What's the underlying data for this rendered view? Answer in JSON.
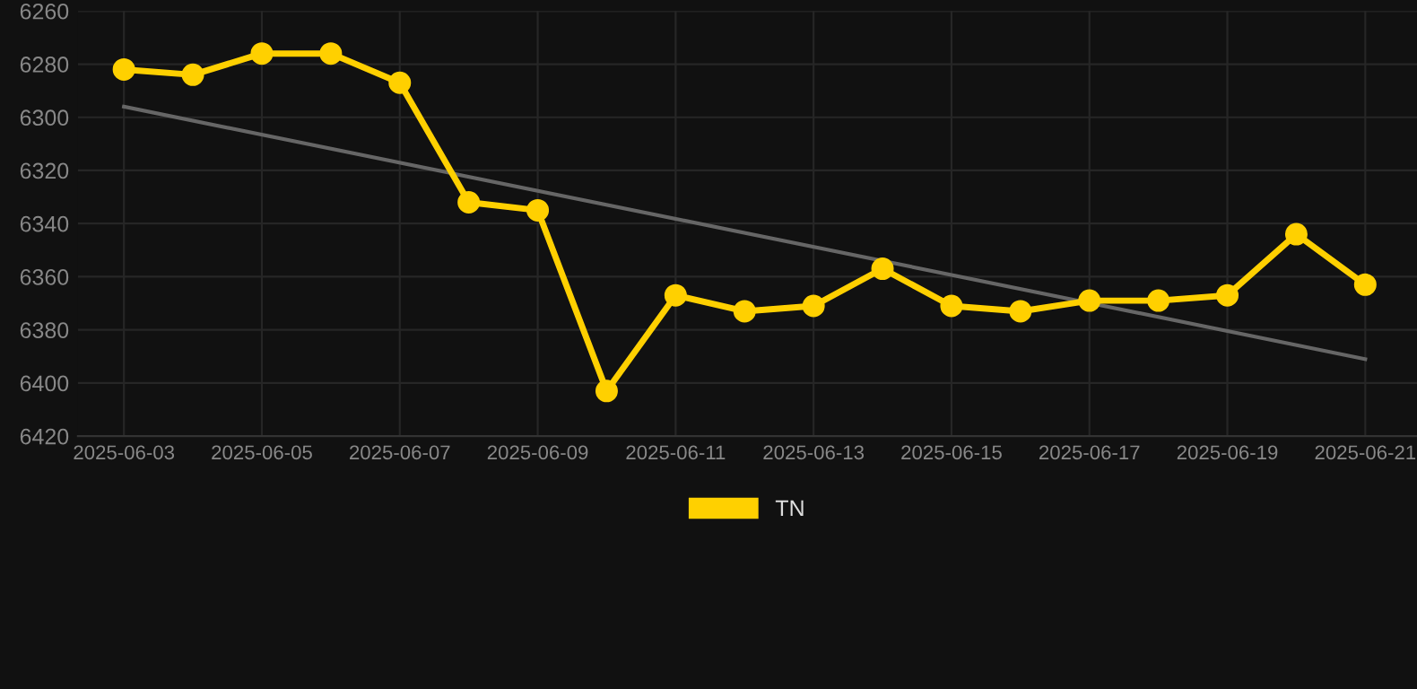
{
  "chart_data": {
    "type": "line",
    "x": [
      "2025-06-03",
      "2025-06-04",
      "2025-06-05",
      "2025-06-06",
      "2025-06-07",
      "2025-06-08",
      "2025-06-09",
      "2025-06-10",
      "2025-06-11",
      "2025-06-12",
      "2025-06-13",
      "2025-06-14",
      "2025-06-15",
      "2025-06-16",
      "2025-06-17",
      "2025-06-18",
      "2025-06-19",
      "2025-06-20",
      "2025-06-21"
    ],
    "series": [
      {
        "name": "TN",
        "color": "#ffd000",
        "marker": "circle",
        "values": [
          6282,
          6284,
          6276,
          6276,
          6287,
          6332,
          6335,
          6403,
          6367,
          6373,
          6371,
          6357,
          6371,
          6373,
          6369,
          6369,
          6367,
          6344,
          6363
        ]
      },
      {
        "type": "line",
        "color": "#666666",
        "marker": "none",
        "x": [
          "2025-06-03",
          "2025-06-21"
        ],
        "values": [
          6296,
          6391
        ]
      }
    ],
    "xlim": [
      "2025-06-02T08:00",
      "2025-06-21T18:00"
    ],
    "xticks": [
      {
        "value": "2025-06-03",
        "label": "2025-06-03"
      },
      {
        "value": "2025-06-05",
        "label": "2025-06-05"
      },
      {
        "value": "2025-06-07",
        "label": "2025-06-07"
      },
      {
        "value": "2025-06-09",
        "label": "2025-06-09"
      },
      {
        "value": "2025-06-11",
        "label": "2025-06-11"
      },
      {
        "value": "2025-06-13",
        "label": "2025-06-13"
      },
      {
        "value": "2025-06-15",
        "label": "2025-06-15"
      },
      {
        "value": "2025-06-17",
        "label": "2025-06-17"
      },
      {
        "value": "2025-06-19",
        "label": "2025-06-19"
      },
      {
        "value": "2025-06-21",
        "label": "2025-06-21"
      }
    ],
    "ylim": [
      6420,
      6260
    ],
    "yticks": [
      6260,
      6280,
      6300,
      6320,
      6340,
      6360,
      6380,
      6400,
      6420
    ],
    "grid": true,
    "legend": "bottom",
    "line_style": "solid"
  }
}
